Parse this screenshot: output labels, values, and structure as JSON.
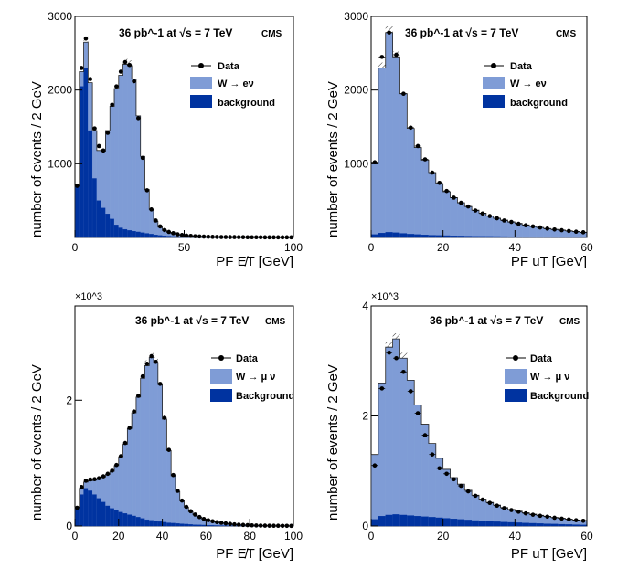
{
  "chart_data": [
    {
      "type": "bar",
      "id": "top-left",
      "header": "36 pb^-1 at √s = 7 TeV",
      "experiment": "CMS",
      "xlabel": "PF E̸T [GeV]",
      "ylabel": "number of events / 2 GeV",
      "ylim": [
        0,
        3000
      ],
      "xlim": [
        0,
        100
      ],
      "multiplier": "",
      "xticks": [
        "0",
        "50",
        "100"
      ],
      "yticks": [
        "1000",
        "2000",
        "3000"
      ],
      "legend": [
        "Data",
        "W → eν",
        "background"
      ],
      "series": [
        {
          "name": "background",
          "values": [
            700,
            2050,
            2300,
            1450,
            800,
            500,
            400,
            320,
            250,
            170,
            130,
            110,
            95,
            85,
            75,
            65,
            55,
            45,
            35,
            28,
            22,
            18,
            14,
            11,
            9,
            7,
            6,
            5,
            4,
            3,
            3,
            2,
            2,
            2,
            1,
            1,
            1,
            1,
            1,
            1,
            1,
            1,
            1,
            1,
            1,
            1,
            1,
            1,
            1,
            1
          ]
        },
        {
          "name": "W → eν",
          "values": [
            700,
            2250,
            2650,
            2100,
            1450,
            1180,
            1170,
            1450,
            1780,
            2020,
            2200,
            2350,
            2330,
            2150,
            1650,
            1100,
            650,
            380,
            220,
            140,
            95,
            70,
            55,
            40,
            32,
            25,
            20,
            16,
            13,
            11,
            9,
            8,
            7,
            6,
            5,
            5,
            4,
            4,
            3,
            3,
            3,
            3,
            2,
            2,
            2,
            2,
            2,
            2,
            2,
            2
          ]
        },
        {
          "name": "Data",
          "values": [
            700,
            2300,
            2700,
            2150,
            1480,
            1240,
            1180,
            1420,
            1800,
            2050,
            2250,
            2380,
            2340,
            2120,
            1620,
            1080,
            640,
            380,
            230,
            150,
            100,
            75,
            58,
            42,
            33,
            26,
            21,
            17,
            14,
            12,
            10,
            8,
            7,
            6,
            6,
            5,
            5,
            4,
            4,
            3,
            3,
            3,
            3,
            2,
            2,
            2,
            2,
            2,
            2,
            2
          ]
        }
      ]
    },
    {
      "type": "bar",
      "id": "top-right",
      "header": "36 pb^-1 at √s = 7 TeV",
      "experiment": "CMS",
      "xlabel": "PF uT [GeV]",
      "ylabel": "number of events / 2 GeV",
      "ylim": [
        0,
        3000
      ],
      "xlim": [
        0,
        60
      ],
      "multiplier": "",
      "xticks": [
        "0",
        "20",
        "40",
        "60"
      ],
      "yticks": [
        "1000",
        "2000",
        "3000"
      ],
      "legend": [
        "Data",
        "W → eν",
        "background"
      ],
      "series": [
        {
          "name": "background",
          "values": [
            40,
            60,
            70,
            65,
            55,
            45,
            40,
            35,
            30,
            28,
            25,
            22,
            20,
            18,
            16,
            15,
            14,
            13,
            12,
            11,
            10,
            9,
            8,
            8,
            7,
            7,
            6,
            6,
            5,
            5
          ]
        },
        {
          "name": "W → eν",
          "values": [
            1000,
            2300,
            2780,
            2450,
            1950,
            1480,
            1220,
            1050,
            880,
            730,
            620,
            540,
            470,
            420,
            370,
            330,
            290,
            260,
            235,
            210,
            190,
            170,
            150,
            135,
            120,
            110,
            100,
            90,
            80,
            70
          ]
        },
        {
          "name": "Data",
          "values": [
            1020,
            2450,
            2780,
            2480,
            1950,
            1490,
            1240,
            1060,
            880,
            740,
            630,
            540,
            470,
            420,
            365,
            325,
            290,
            260,
            230,
            210,
            185,
            165,
            150,
            135,
            120,
            108,
            98,
            88,
            78,
            70
          ]
        }
      ]
    },
    {
      "type": "bar",
      "id": "bottom-left",
      "header": "36 pb^-1 at √s = 7 TeV",
      "experiment": "CMS",
      "xlabel": "PF E̸T [GeV]",
      "ylabel": "number of events / 2 GeV",
      "ylim": [
        0,
        3500
      ],
      "xlim": [
        0,
        100
      ],
      "multiplier": "×10^3",
      "xticks": [
        "0",
        "20",
        "40",
        "60",
        "80",
        "100"
      ],
      "yticks": [
        "0",
        "2"
      ],
      "legend": [
        "Data",
        "W → μ ν",
        "Background"
      ],
      "series": [
        {
          "name": "Background",
          "values": [
            300,
            500,
            600,
            560,
            500,
            440,
            380,
            320,
            280,
            250,
            220,
            200,
            180,
            160,
            140,
            120,
            100,
            90,
            80,
            70,
            60,
            50,
            45,
            40,
            35,
            30,
            25,
            20,
            18,
            15,
            12,
            10,
            8,
            7,
            6,
            5,
            5,
            4,
            4,
            3,
            3,
            3,
            2,
            2,
            2,
            2,
            2,
            2,
            1,
            1
          ]
        },
        {
          "name": "W → μ ν",
          "values": [
            300,
            600,
            700,
            720,
            730,
            750,
            780,
            820,
            870,
            960,
            1100,
            1300,
            1550,
            1800,
            2050,
            2350,
            2550,
            2680,
            2600,
            2250,
            1700,
            1200,
            800,
            550,
            400,
            300,
            230,
            180,
            140,
            110,
            90,
            75,
            60,
            50,
            40,
            32,
            25,
            20,
            16,
            13,
            10,
            8,
            7,
            6,
            5,
            4,
            4,
            3,
            3,
            2
          ]
        },
        {
          "name": "Data",
          "values": [
            290,
            620,
            720,
            740,
            745,
            760,
            790,
            830,
            880,
            970,
            1110,
            1320,
            1560,
            1820,
            2070,
            2380,
            2580,
            2700,
            2610,
            2260,
            1720,
            1210,
            810,
            560,
            405,
            305,
            235,
            182,
            142,
            112,
            92,
            76,
            61,
            51,
            41,
            33,
            26,
            21,
            17,
            14,
            11,
            9,
            7,
            6,
            5,
            4,
            4,
            3,
            3,
            2
          ]
        }
      ]
    },
    {
      "type": "bar",
      "id": "bottom-right",
      "header": "36 pb^-1 at √s = 7 TeV",
      "experiment": "CMS",
      "xlabel": "PF uT [GeV]",
      "ylabel": "number of events / 2 GeV",
      "ylim": [
        0,
        4000
      ],
      "xlim": [
        0,
        60
      ],
      "multiplier": "×10^3",
      "xticks": [
        "0",
        "20",
        "40",
        "60"
      ],
      "yticks": [
        "0",
        "2",
        "4"
      ],
      "legend": [
        "Data",
        "W → μ ν",
        "Background"
      ],
      "series": [
        {
          "name": "Background",
          "values": [
            120,
            180,
            200,
            210,
            200,
            190,
            180,
            170,
            160,
            150,
            140,
            130,
            120,
            110,
            100,
            92,
            85,
            78,
            72,
            66,
            60,
            55,
            50,
            45,
            40,
            36,
            32,
            28,
            24,
            20
          ]
        },
        {
          "name": "W → μ ν",
          "values": [
            1300,
            2600,
            3250,
            3400,
            3050,
            2650,
            2200,
            1850,
            1500,
            1230,
            1030,
            880,
            760,
            650,
            560,
            490,
            430,
            380,
            335,
            300,
            270,
            240,
            215,
            195,
            175,
            155,
            140,
            125,
            110,
            100
          ]
        },
        {
          "name": "Data",
          "values": [
            1100,
            2500,
            3150,
            3050,
            2800,
            2450,
            2050,
            1650,
            1300,
            1050,
            950,
            850,
            730,
            630,
            550,
            480,
            420,
            370,
            325,
            290,
            260,
            230,
            205,
            185,
            170,
            150,
            135,
            120,
            105,
            95
          ]
        }
      ]
    }
  ]
}
